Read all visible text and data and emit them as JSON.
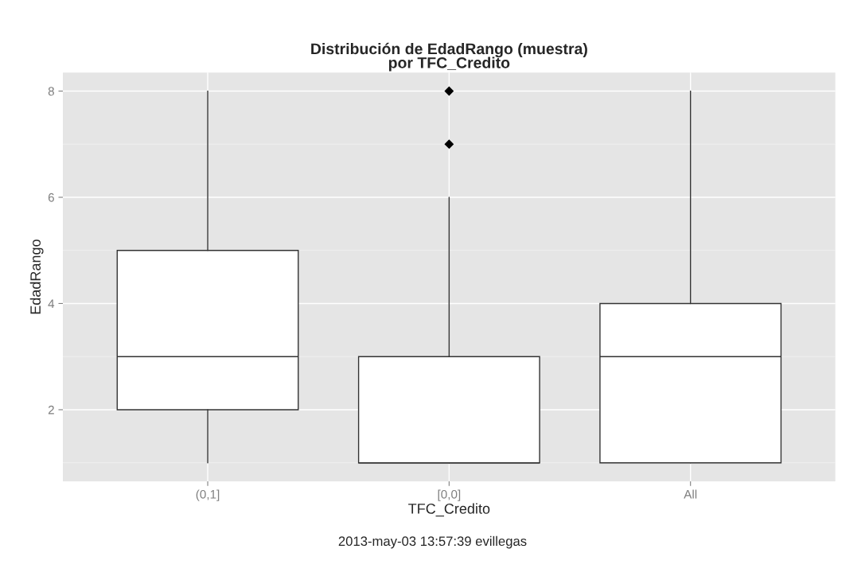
{
  "chart_data": {
    "type": "box",
    "title": "Distribución de EdadRango (muestra)\npor TFC_Credito",
    "xlabel": "TFC_Credito",
    "ylabel": "EdadRango",
    "categories": [
      "(0,1]",
      "[0,0]",
      "All"
    ],
    "boxes": [
      {
        "low": 1,
        "q1": 2,
        "median": 3,
        "q3": 5,
        "high": 8
      },
      {
        "low": 1,
        "q1": 1,
        "median": 1,
        "q3": 3,
        "high": 6,
        "outliers": [
          7,
          8
        ]
      },
      {
        "low": 1,
        "q1": 1,
        "median": 3,
        "q3": 4,
        "high": 8
      }
    ],
    "ylim": [
      0.65,
      8.35
    ],
    "yticks": [
      2,
      4,
      6,
      8
    ],
    "grid": true,
    "annotations": [
      "2013-may-03 13:57:39 evillegas"
    ]
  }
}
